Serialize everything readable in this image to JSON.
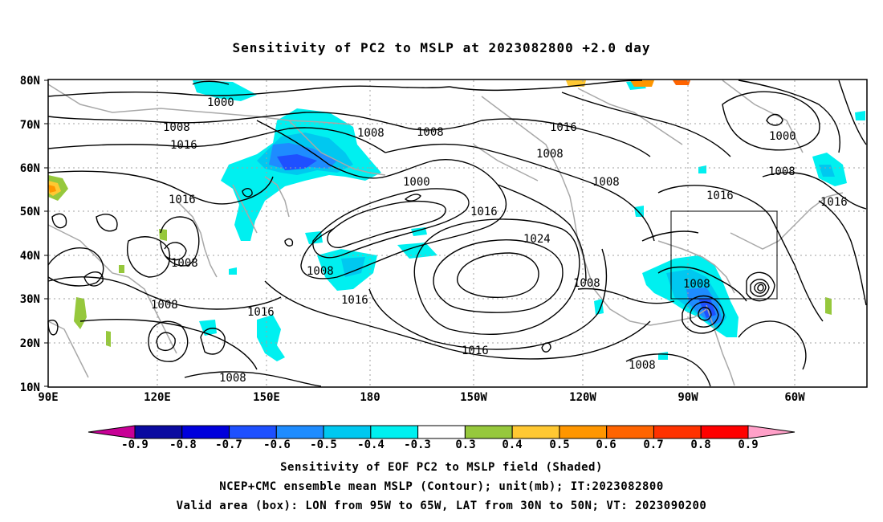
{
  "title": "Sensitivity of PC2 to MSLP at 2023082800 +2.0 day",
  "lat_labels": [
    "80N",
    "70N",
    "60N",
    "50N",
    "40N",
    "30N",
    "20N",
    "10N"
  ],
  "lon_labels": [
    "90E",
    "120E",
    "150E",
    "180",
    "150W",
    "120W",
    "90W",
    "60W"
  ],
  "contour_labels": [
    "1000",
    "1008",
    "1016",
    "1008",
    "1008",
    "1008",
    "1016",
    "1016",
    "1000",
    "1000",
    "1016",
    "1008",
    "1024",
    "1008",
    "1008",
    "1016",
    "1016",
    "1008",
    "1008",
    "1008",
    "1016",
    "1008",
    "1008",
    "1016",
    "1000",
    "1008",
    "1016"
  ],
  "colorbar": {
    "labels": [
      "-0.9",
      "-0.8",
      "-0.7",
      "-0.6",
      "-0.5",
      "-0.4",
      "-0.3",
      "0.3",
      "0.4",
      "0.5",
      "0.6",
      "0.7",
      "0.8",
      "0.9"
    ],
    "colors": [
      "#0a0aa0",
      "#0000dc",
      "#1e50ff",
      "#1e8cff",
      "#00c8f0",
      "#00f0f0",
      "#ffffff",
      "#96c83c",
      "#ffc832",
      "#ff9600",
      "#ff6400",
      "#ff3200",
      "#ff0000"
    ],
    "low_color": "#c80096",
    "high_color": "#ffa0c8"
  },
  "captions": [
    "Sensitivity of EOF PC2 to MSLP field (Shaded)",
    "NCEP+CMC ensemble mean MSLP (Contour); unit(mb); IT:2023082800",
    "Valid area (box): LON from 95W to 65W, LAT from 30N to 50N; VT: 2023090200"
  ]
}
